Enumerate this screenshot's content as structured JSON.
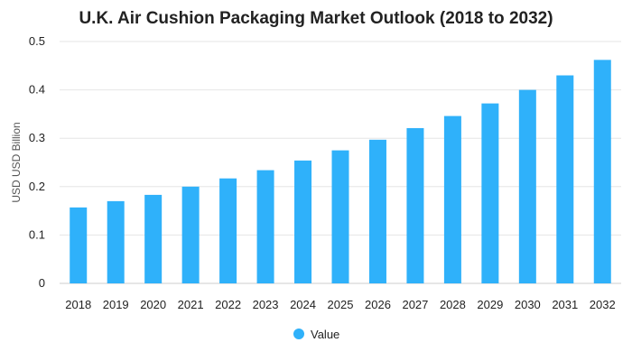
{
  "chart_data": {
    "type": "bar",
    "title": "U.K. Air Cushion Packaging Market Outlook (2018 to 2032)",
    "xlabel": "",
    "ylabel": "USD USD Billion",
    "ylim": [
      0,
      0.5
    ],
    "yticks": [
      0,
      0.1,
      0.2,
      0.3,
      0.4,
      0.5
    ],
    "ytick_labels": [
      "0",
      "0.1",
      "0.2",
      "0.3",
      "0.4",
      "0.5"
    ],
    "grid": true,
    "legend_position": "bottom",
    "categories": [
      "2018",
      "2019",
      "2020",
      "2021",
      "2022",
      "2023",
      "2024",
      "2025",
      "2026",
      "2027",
      "2028",
      "2029",
      "2030",
      "2031",
      "2032"
    ],
    "series": [
      {
        "name": "Value",
        "color": "#2FB1FA",
        "values": [
          0.157,
          0.17,
          0.183,
          0.2,
          0.217,
          0.234,
          0.254,
          0.275,
          0.297,
          0.321,
          0.346,
          0.372,
          0.4,
          0.43,
          0.462
        ]
      }
    ]
  }
}
